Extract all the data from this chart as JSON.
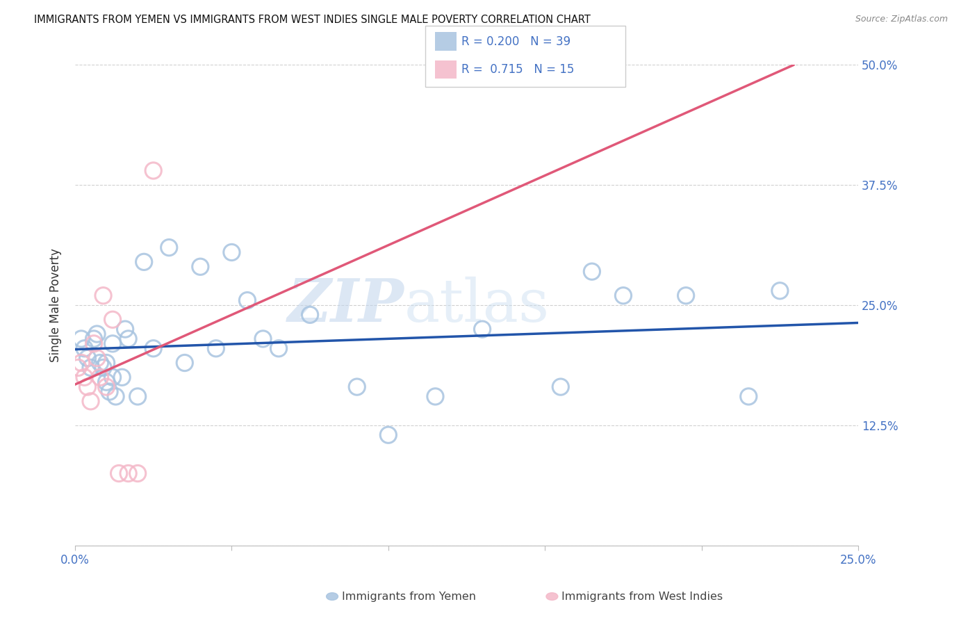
{
  "title": "IMMIGRANTS FROM YEMEN VS IMMIGRANTS FROM WEST INDIES SINGLE MALE POVERTY CORRELATION CHART",
  "source": "Source: ZipAtlas.com",
  "ylabel": "Single Male Poverty",
  "watermark_zip": "ZIP",
  "watermark_atlas": "atlas",
  "xlim": [
    0.0,
    0.25
  ],
  "ylim": [
    0.0,
    0.5
  ],
  "x_ticks": [
    0.0,
    0.05,
    0.1,
    0.15,
    0.2,
    0.25
  ],
  "x_tick_labels": [
    "0.0%",
    "",
    "",
    "",
    "",
    "25.0%"
  ],
  "y_ticks": [
    0.0,
    0.125,
    0.25,
    0.375,
    0.5
  ],
  "y_tick_labels": [
    "",
    "12.5%",
    "25.0%",
    "37.5%",
    "50.0%"
  ],
  "legend1_r": "0.200",
  "legend1_n": "39",
  "legend2_r": "0.715",
  "legend2_n": "15",
  "blue_color": "#a8c4e0",
  "pink_color": "#f4b8c8",
  "line_blue": "#2255aa",
  "line_pink": "#e05878",
  "axis_label_color": "#4472c4",
  "title_color": "#111111",
  "grid_color": "#d0d0d0",
  "bottom_label_yemen": "Immigrants from Yemen",
  "bottom_label_wi": "Immigrants from West Indies",
  "yemen_x": [
    0.002,
    0.003,
    0.004,
    0.005,
    0.006,
    0.007,
    0.008,
    0.009,
    0.01,
    0.011,
    0.012,
    0.013,
    0.015,
    0.016,
    0.017,
    0.022,
    0.03,
    0.04,
    0.05,
    0.055,
    0.06,
    0.065,
    0.075,
    0.09,
    0.1,
    0.115,
    0.13,
    0.155,
    0.165,
    0.175,
    0.195,
    0.215,
    0.225,
    0.01,
    0.012,
    0.02,
    0.025,
    0.035,
    0.045
  ],
  "yemen_y": [
    0.215,
    0.205,
    0.195,
    0.185,
    0.215,
    0.22,
    0.19,
    0.185,
    0.17,
    0.16,
    0.175,
    0.155,
    0.175,
    0.225,
    0.215,
    0.295,
    0.31,
    0.29,
    0.305,
    0.255,
    0.215,
    0.205,
    0.24,
    0.165,
    0.115,
    0.155,
    0.225,
    0.165,
    0.285,
    0.26,
    0.26,
    0.155,
    0.265,
    0.19,
    0.21,
    0.155,
    0.205,
    0.19,
    0.205
  ],
  "wi_x": [
    0.001,
    0.002,
    0.003,
    0.004,
    0.005,
    0.006,
    0.007,
    0.008,
    0.009,
    0.01,
    0.012,
    0.014,
    0.017,
    0.02,
    0.025
  ],
  "wi_y": [
    0.185,
    0.19,
    0.175,
    0.165,
    0.15,
    0.21,
    0.195,
    0.175,
    0.26,
    0.165,
    0.235,
    0.075,
    0.075,
    0.075,
    0.39
  ]
}
